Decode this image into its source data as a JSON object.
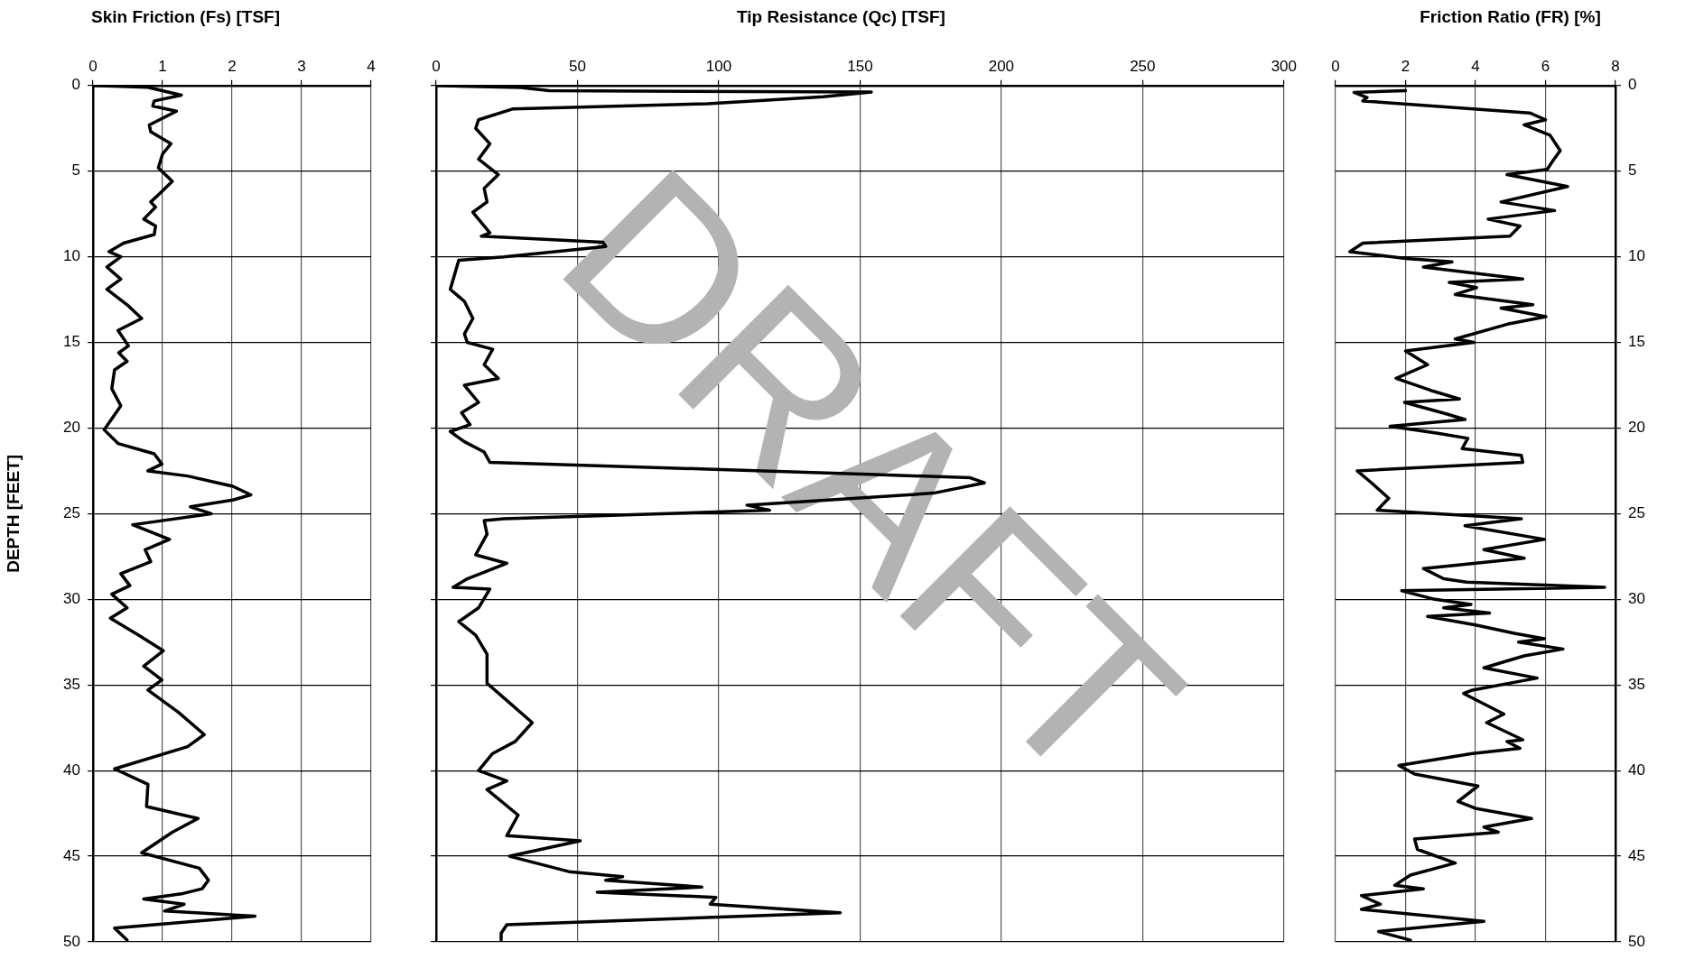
{
  "chart_data": [
    {
      "type": "line",
      "title": "Skin Friction (Fs) [TSF]",
      "ylabel": "DEPTH [FEET]",
      "xlim": [
        0,
        4
      ],
      "xticks": [
        0,
        1,
        2,
        3,
        4
      ],
      "ylim": [
        50,
        0
      ],
      "yticks": [
        0,
        5,
        10,
        15,
        20,
        25,
        30,
        35,
        40,
        45,
        50
      ],
      "grid": true,
      "marker": "none",
      "line_style": "solid",
      "series": [
        {
          "color": "#000000",
          "x": [
            0,
            0.79,
            1.27,
            0.88,
            0.86,
            1.2,
            0.81,
            0.83,
            1.12,
            1.0,
            0.94,
            1.14,
            0.96,
            0.83,
            0.9,
            0.73,
            0.9,
            0.88,
            0.44,
            0.23,
            0.4,
            0.2,
            0.4,
            0.2,
            0.49,
            0.7,
            0.36,
            0.51,
            0.37,
            0.49,
            0.31,
            0.27,
            0.4,
            0.16,
            0.36,
            0.88,
            0.99,
            0.79,
            1.36,
            2.01,
            2.27,
            2.01,
            1.4,
            1.7,
            0.83,
            0.57,
            1.1,
            0.75,
            0.83,
            0.4,
            0.53,
            0.27,
            0.49,
            0.25,
            0.66,
            1.01,
            0.73,
            0.99,
            0.79,
            1.23,
            1.6,
            1.36,
            0.31,
            0.79,
            0.77,
            1.51,
            1.14,
            0.7,
            1.53,
            1.66,
            1.57,
            1.27,
            0.73,
            1.31,
            1.03,
            2.33,
            0.31,
            0.49
          ],
          "values": [
            0,
            0.1,
            0.56,
            0.9,
            1.2,
            1.5,
            2.3,
            2.7,
            3.4,
            4.0,
            4.8,
            5.6,
            6.3,
            6.8,
            7.1,
            7.8,
            8.2,
            8.7,
            9.2,
            9.7,
            10.0,
            10.6,
            11.3,
            11.9,
            12.8,
            13.6,
            14.3,
            15.2,
            15.6,
            16.1,
            16.6,
            17.7,
            18.7,
            20.1,
            20.9,
            21.5,
            22.1,
            22.5,
            22.8,
            23.4,
            23.9,
            24.2,
            24.6,
            25.0,
            25.5,
            25.65,
            26.5,
            27.1,
            27.8,
            28.5,
            29.2,
            29.7,
            30.5,
            31.1,
            32.1,
            33.0,
            33.9,
            34.7,
            35.3,
            36.6,
            37.9,
            38.6,
            39.9,
            40.8,
            42.1,
            42.8,
            43.6,
            44.8,
            45.7,
            46.4,
            46.9,
            47.2,
            47.5,
            47.8,
            48.2,
            48.5,
            49.2,
            49.9
          ]
        }
      ]
    },
    {
      "type": "line",
      "title": "Tip Resistance (Qc) [TSF]",
      "annotations": [
        "DRAFT"
      ],
      "tick_labels": "x",
      "xlim": [
        0,
        300
      ],
      "xticks": [
        0,
        50,
        100,
        150,
        200,
        250,
        300
      ],
      "ylim": [
        50,
        0
      ],
      "yticks": [
        0,
        5,
        10,
        15,
        20,
        25,
        30,
        35,
        40,
        45,
        50
      ],
      "grid": true,
      "marker": "none",
      "line_style": "solid",
      "series": [
        {
          "color": "#000000",
          "x": [
            0,
            30,
            40,
            154,
            137,
            96,
            27,
            15,
            14,
            19,
            15,
            22,
            17,
            18,
            13,
            19,
            16,
            59,
            60,
            24,
            8,
            5,
            10,
            13,
            10,
            11,
            20,
            17,
            22,
            10,
            15,
            9,
            12,
            5,
            10,
            17,
            19,
            96,
            153,
            189,
            194,
            176,
            110,
            118,
            24,
            17,
            18,
            14,
            25,
            11,
            6,
            19,
            15,
            8,
            14,
            18,
            18,
            25,
            34,
            28,
            20,
            15,
            25,
            18,
            29,
            25,
            51,
            26,
            47,
            66,
            60,
            94,
            57,
            99,
            97,
            143,
            25,
            23,
            23
          ],
          "values": [
            0,
            0.12,
            0.3,
            0.38,
            0.66,
            1.06,
            1.37,
            2.0,
            2.5,
            3.4,
            4.3,
            5.2,
            6.0,
            6.8,
            7.4,
            8.6,
            8.8,
            9.15,
            9.4,
            10.0,
            10.2,
            11.9,
            12.6,
            13.6,
            14.5,
            15.0,
            15.4,
            16.3,
            17.1,
            17.5,
            18.5,
            19.1,
            19.8,
            20.2,
            20.8,
            21.4,
            22.0,
            22.4,
            22.7,
            22.9,
            23.2,
            23.8,
            24.5,
            24.8,
            25.3,
            25.4,
            26.2,
            27.4,
            27.9,
            28.8,
            29.3,
            29.4,
            30.5,
            31.3,
            32.1,
            33.2,
            34.9,
            35.9,
            37.2,
            38.3,
            39.0,
            40.0,
            40.6,
            41.1,
            42.6,
            43.8,
            44.1,
            45.0,
            45.9,
            46.2,
            46.4,
            46.8,
            47.1,
            47.4,
            47.8,
            48.3,
            49.0,
            49.5,
            49.9
          ]
        }
      ]
    },
    {
      "type": "line",
      "title": "Friction Ratio (FR) [%]",
      "xlim": [
        0,
        8
      ],
      "xticks": [
        0,
        2,
        4,
        6,
        8
      ],
      "ylim": [
        50,
        0
      ],
      "yticks": [
        0,
        5,
        10,
        15,
        20,
        25,
        30,
        35,
        40,
        45,
        50
      ],
      "grid": true,
      "marker": "none",
      "line_style": "solid",
      "series": [
        {
          "color": "#000000",
          "x": [
            2.0,
            0.53,
            0.9,
            0.78,
            5.55,
            6.0,
            5.39,
            6.13,
            6.42,
            6.21,
            6.05,
            4.9,
            6.63,
            4.73,
            6.26,
            4.36,
            5.27,
            4.98,
            0.78,
            0.41,
            2.0,
            3.33,
            2.51,
            5.35,
            3.25,
            4.03,
            3.42,
            5.64,
            4.73,
            6.01,
            4.98,
            3.42,
            3.95,
            2.0,
            2.63,
            1.73,
            2.72,
            3.54,
            1.97,
            3.21,
            3.7,
            1.56,
            2.92,
            3.78,
            3.62,
            5.31,
            5.35,
            0.62,
            1.03,
            1.52,
            1.19,
            5.31,
            3.7,
            5.97,
            4.24,
            5.39,
            2.51,
            3.09,
            3.74,
            7.69,
            1.89,
            2.84,
            3.87,
            3.09,
            4.4,
            2.63,
            4.0,
            5.14,
            5.97,
            5.23,
            6.5,
            5.39,
            4.24,
            5.76,
            3.91,
            3.66,
            4.81,
            4.32,
            5.35,
            4.9,
            5.27,
            3.91,
            1.81,
            2.26,
            4.07,
            3.5,
            3.99,
            5.6,
            4.24,
            4.65,
            2.26,
            2.34,
            3.42,
            2.14,
            1.69,
            2.51,
            0.74,
            1.28,
            0.74,
            4.24,
            1.23,
            2.14
          ],
          "values": [
            0.3,
            0.4,
            0.7,
            0.9,
            1.6,
            2.0,
            2.3,
            2.9,
            3.8,
            4.4,
            4.9,
            5.2,
            5.9,
            6.8,
            7.3,
            7.8,
            8.2,
            8.8,
            9.2,
            9.7,
            10.1,
            10.3,
            10.6,
            11.3,
            11.5,
            11.8,
            12.2,
            12.8,
            13.0,
            13.5,
            13.9,
            14.8,
            15.0,
            15.5,
            16.3,
            17.1,
            17.8,
            18.3,
            18.5,
            19.2,
            19.5,
            19.9,
            20.3,
            20.6,
            21.2,
            21.6,
            22.0,
            22.5,
            23.2,
            24.1,
            24.8,
            25.3,
            25.7,
            26.5,
            27.1,
            27.6,
            28.2,
            28.8,
            29.0,
            29.3,
            29.5,
            30.0,
            30.3,
            30.5,
            30.8,
            31.0,
            31.5,
            32.0,
            32.3,
            32.5,
            32.9,
            33.3,
            34.0,
            34.6,
            35.3,
            35.5,
            36.7,
            37.2,
            38.2,
            38.3,
            38.7,
            39.0,
            39.7,
            40.2,
            40.9,
            41.8,
            42.2,
            42.8,
            43.3,
            43.6,
            44.0,
            44.6,
            45.4,
            46.1,
            46.7,
            46.9,
            47.3,
            47.8,
            48.1,
            48.8,
            49.4,
            49.9
          ]
        }
      ]
    }
  ]
}
